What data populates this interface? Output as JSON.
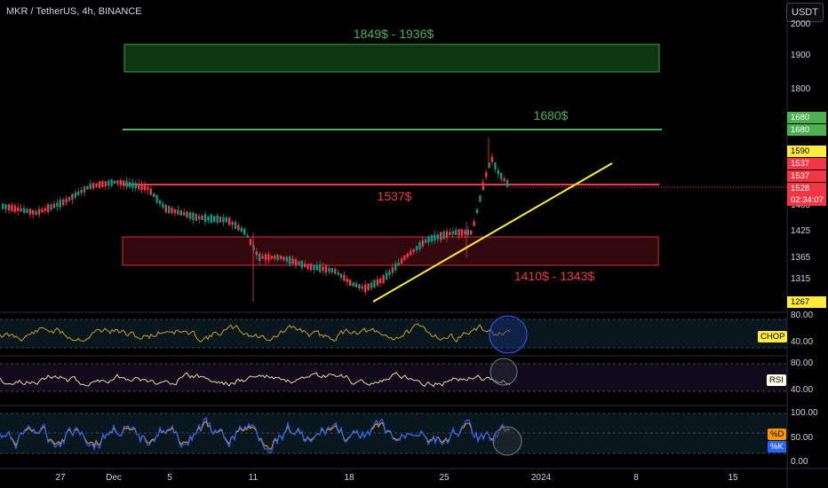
{
  "header": {
    "symbol_line": "MKR / TetherUS, 4h, BINANCE",
    "currency_button": "USDT"
  },
  "annotations": {
    "resistance_zone": "1849$ - 1936$",
    "resistance_line": "1680$",
    "mid_line": "1537$",
    "support_zone": "1410$ - 1343$"
  },
  "price_axis": {
    "ticks": [
      "2000",
      "1900",
      "1800",
      "1485",
      "1425",
      "1365",
      "1315"
    ]
  },
  "price_tags": [
    {
      "text": "1680",
      "bg": "#4caf50",
      "fg": "#ffffff"
    },
    {
      "text": "1680",
      "bg": "#4caf50",
      "fg": "#ffffff"
    },
    {
      "text": "1590",
      "bg": "#ffeb3b",
      "fg": "#000000"
    },
    {
      "text": "1537",
      "bg": "#f23645",
      "fg": "#ffffff"
    },
    {
      "text": "1537",
      "bg": "#f23645",
      "fg": "#ffffff"
    },
    {
      "text": "1528",
      "bg": "#f23645",
      "fg": "#ffffff"
    },
    {
      "text": "02:34:07",
      "bg": "#f23645",
      "fg": "#ffffff"
    },
    {
      "text": "1267",
      "bg": "#ffeb3b",
      "fg": "#000000"
    }
  ],
  "indicators": {
    "chop": {
      "label": "CHOP",
      "ticks": [
        "80.00",
        "40.00"
      ],
      "color": "#c9a227"
    },
    "rsi": {
      "label": "RSI",
      "ticks": [
        "80.00",
        "40.00"
      ],
      "color": "#e6d9a6"
    },
    "stoch": {
      "label_d": "%D",
      "label_k": "%K",
      "ticks": [
        "100.00",
        "50.00",
        "0.00"
      ],
      "color_k": "#2962ff",
      "color_d": "#ff9800"
    }
  },
  "time_axis": {
    "ticks": [
      "27",
      "Dec",
      "5",
      "11",
      "18",
      "25",
      "2024",
      "8",
      "15"
    ]
  },
  "colors": {
    "up": "#089981",
    "down": "#f23645",
    "resistance": "#4caf50",
    "support": "#f23645",
    "trendline": "#ffeb3b"
  },
  "chart_data": [
    {
      "type": "candlestick",
      "title": "MKR / TetherUS, 4h, BINANCE",
      "x_ticks": [
        "27",
        "Dec",
        "5",
        "11",
        "18",
        "25",
        "2024",
        "8",
        "15"
      ],
      "y_ticks": [
        2000,
        1900,
        1800,
        1485,
        1425,
        1365,
        1315
      ],
      "last_price": 1528,
      "levels": {
        "resistance_zone": [
          1849,
          1936
        ],
        "resistance": 1680,
        "mid": 1537,
        "support_zone": [
          1343,
          1410
        ]
      },
      "trendline": "rising, from 19 Dec low toward early January"
    },
    {
      "type": "line",
      "title": "CHOP",
      "y_ticks": [
        80,
        40
      ]
    },
    {
      "type": "line",
      "title": "RSI",
      "y_ticks": [
        80,
        40
      ]
    },
    {
      "type": "line",
      "title": "%D / %K",
      "y_ticks": [
        100,
        50,
        0
      ]
    }
  ]
}
